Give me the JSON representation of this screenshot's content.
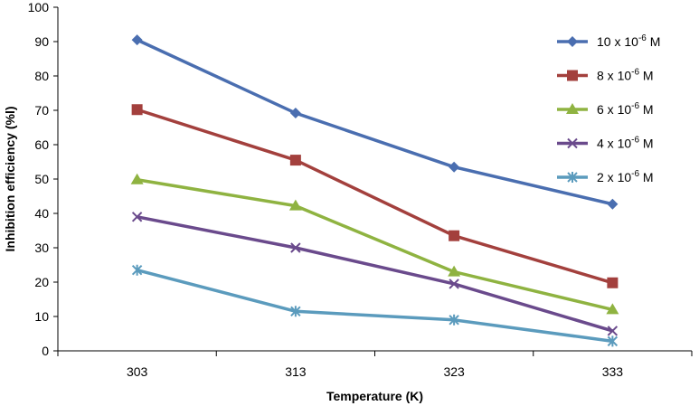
{
  "chart_data": {
    "type": "line",
    "categories": [
      "303",
      "313",
      "323",
      "333"
    ],
    "xlabel": "Temperature (K)",
    "ylabel": "Inhibition efficiency (%l)",
    "ylim": [
      0,
      100
    ],
    "yticks": [
      "0",
      "10",
      "20",
      "30",
      "40",
      "50",
      "60",
      "70",
      "80",
      "90",
      "100"
    ],
    "grid": false,
    "legend_position": "top-right",
    "series": [
      {
        "name": "10 x 10-6 M",
        "legend": {
          "pre": "10 x 10",
          "sup": "-6",
          "post": " M"
        },
        "values": [
          90.5,
          69.2,
          53.5,
          42.7
        ],
        "color": "#4a6eb0",
        "marker": "diamond"
      },
      {
        "name": "8 x 10-6 M",
        "legend": {
          "pre": "8 x 10",
          "sup": "-6",
          "post": " M"
        },
        "values": [
          70.2,
          55.5,
          33.5,
          19.8
        ],
        "color": "#a3403d",
        "marker": "square"
      },
      {
        "name": "6 x 10-6 M",
        "legend": {
          "pre": "6 x 10",
          "sup": "-6",
          "post": " M"
        },
        "values": [
          49.8,
          42.2,
          23.0,
          12.0
        ],
        "color": "#8fb341",
        "marker": "triangle"
      },
      {
        "name": "4 x 10-6 M",
        "legend": {
          "pre": "4 x 10",
          "sup": "-6",
          "post": " M"
        },
        "values": [
          39.0,
          30.0,
          19.5,
          5.8
        ],
        "color": "#6a4a8c",
        "marker": "x"
      },
      {
        "name": "2 x 10-6 M",
        "legend": {
          "pre": "2 x 10",
          "sup": "-6",
          "post": " M"
        },
        "values": [
          23.5,
          11.5,
          9.0,
          2.8
        ],
        "color": "#5b9bbd",
        "marker": "star"
      }
    ]
  }
}
